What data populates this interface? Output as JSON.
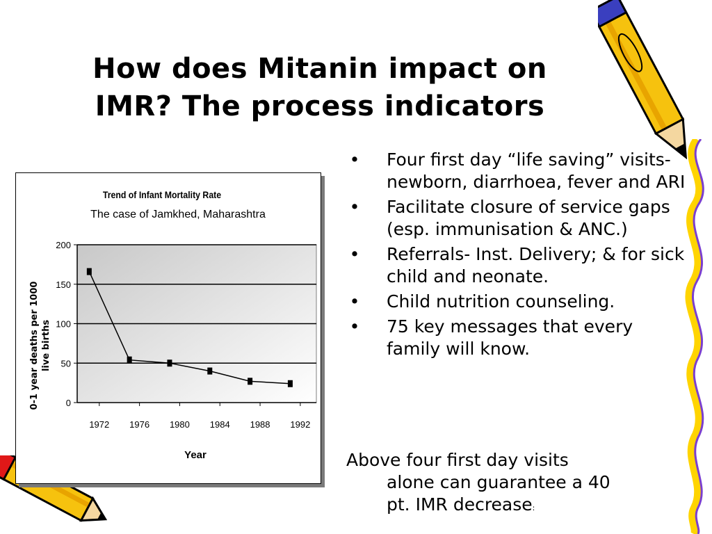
{
  "slide": {
    "title_line1": "How does Mitanin impact on",
    "title_line2": "IMR? The process indicators"
  },
  "bullets": [
    "Four first day “life saving” visits- newborn, diarrhoea, fever and ARI",
    "Facilitate closure of service gaps (esp. immunisation & ANC.)",
    "Referrals-  Inst. Delivery; & for sick child and neonate.",
    "Child nutrition counseling.",
    "75 key messages that every family will know."
  ],
  "bullet_symbol": "•",
  "footer": {
    "line1": "Above four first day visits",
    "line2": "alone can guarantee a 40",
    "line3": "pt. IMR decrease",
    "trailing": ":"
  },
  "decorations": [
    "pencil-top-right-icon",
    "pencil-bottom-left-icon",
    "squiggle-border-right-icon"
  ],
  "chart_data": {
    "type": "line",
    "title": "Trend of Infant Mortality Rate",
    "subtitle": "The case of Jamkhed, Maharashtra",
    "xlabel": "Year",
    "ylabel_line1": "0-1 year deaths per 1000",
    "ylabel_line2": "live births",
    "categories": [
      "1972",
      "1976",
      "1980",
      "1984",
      "1988",
      "1992"
    ],
    "x": [
      1971,
      1975,
      1979,
      1983,
      1987,
      1991
    ],
    "values": [
      166,
      54,
      50,
      40,
      27,
      24
    ],
    "ylim": [
      0,
      200
    ],
    "yticks": [
      0,
      50,
      100,
      150,
      200
    ],
    "grid": true,
    "colors": {
      "line": "#000000",
      "marker": "#000000",
      "plot_bg_dark": "#c8c8c8",
      "plot_bg_light": "#ffffff"
    }
  }
}
